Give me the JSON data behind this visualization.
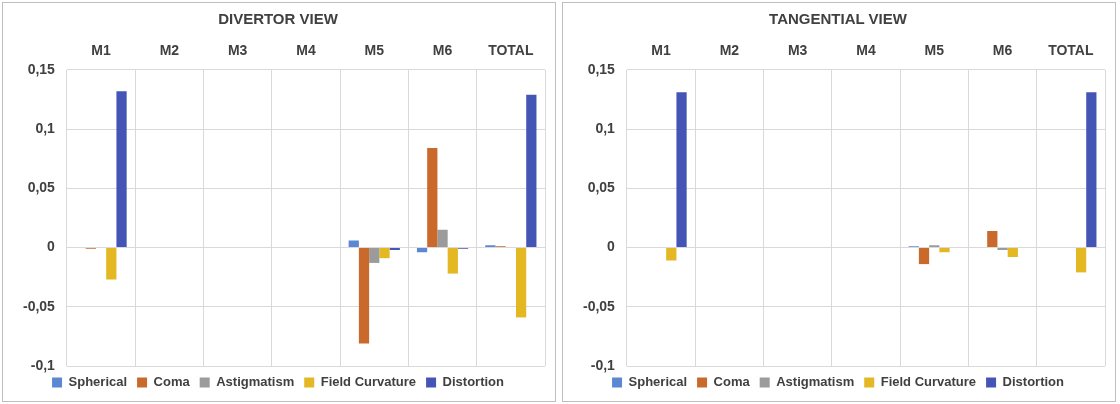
{
  "chart_data": [
    {
      "type": "bar",
      "title": "DIVERTOR VIEW",
      "categories": [
        "M1",
        "M2",
        "M3",
        "M4",
        "M5",
        "M6",
        "TOTAL"
      ],
      "series": [
        {
          "name": "Spherical",
          "color": "#5b87d3",
          "values": [
            0,
            0,
            0,
            0,
            0.006,
            -0.004,
            0.002
          ]
        },
        {
          "name": "Coma",
          "color": "#c9692c",
          "values": [
            -0.001,
            0,
            0,
            0,
            -0.081,
            0.084,
            0.001
          ]
        },
        {
          "name": "Astigmatism",
          "color": "#9b9b9b",
          "values": [
            0,
            0,
            0,
            0,
            -0.013,
            0.015,
            0
          ]
        },
        {
          "name": "Field Curvature",
          "color": "#e4b822",
          "values": [
            -0.027,
            0,
            0,
            0,
            -0.009,
            -0.022,
            -0.059
          ]
        },
        {
          "name": "Distortion",
          "color": "#4555b6",
          "values": [
            0.132,
            0,
            0,
            0,
            -0.002,
            -0.001,
            0.129
          ]
        }
      ],
      "ylim": [
        -0.1,
        0.15
      ],
      "yticks": [
        {
          "value": -0.1,
          "label": "-0,1"
        },
        {
          "value": -0.05,
          "label": "-0,05"
        },
        {
          "value": 0,
          "label": "0"
        },
        {
          "value": 0.05,
          "label": "0,05"
        },
        {
          "value": 0.1,
          "label": "0,1"
        },
        {
          "value": 0.15,
          "label": "0,15"
        }
      ],
      "grid": true,
      "legend": "bottom"
    },
    {
      "type": "bar",
      "title": "TANGENTIAL VIEW",
      "categories": [
        "M1",
        "M2",
        "M3",
        "M4",
        "M5",
        "M6",
        "TOTAL"
      ],
      "series": [
        {
          "name": "Spherical",
          "color": "#5b87d3",
          "values": [
            0,
            0,
            0,
            0,
            0.001,
            0,
            0
          ]
        },
        {
          "name": "Coma",
          "color": "#c9692c",
          "values": [
            0,
            0,
            0,
            0,
            -0.014,
            0.014,
            0
          ]
        },
        {
          "name": "Astigmatism",
          "color": "#9b9b9b",
          "values": [
            0,
            0,
            0,
            0,
            0.002,
            -0.002,
            0
          ]
        },
        {
          "name": "Field Curvature",
          "color": "#e4b822",
          "values": [
            -0.011,
            0,
            0,
            0,
            -0.004,
            -0.008,
            -0.021
          ]
        },
        {
          "name": "Distortion",
          "color": "#4555b6",
          "values": [
            0.131,
            0,
            0,
            0,
            0,
            0,
            0.131
          ]
        }
      ],
      "ylim": [
        -0.1,
        0.15
      ],
      "yticks": [
        {
          "value": -0.1,
          "label": "-0,1"
        },
        {
          "value": -0.05,
          "label": "-0,05"
        },
        {
          "value": 0,
          "label": "0"
        },
        {
          "value": 0.05,
          "label": "0,05"
        },
        {
          "value": 0.1,
          "label": "0,1"
        },
        {
          "value": 0.15,
          "label": "0,15"
        }
      ],
      "grid": true,
      "legend": "bottom"
    }
  ]
}
